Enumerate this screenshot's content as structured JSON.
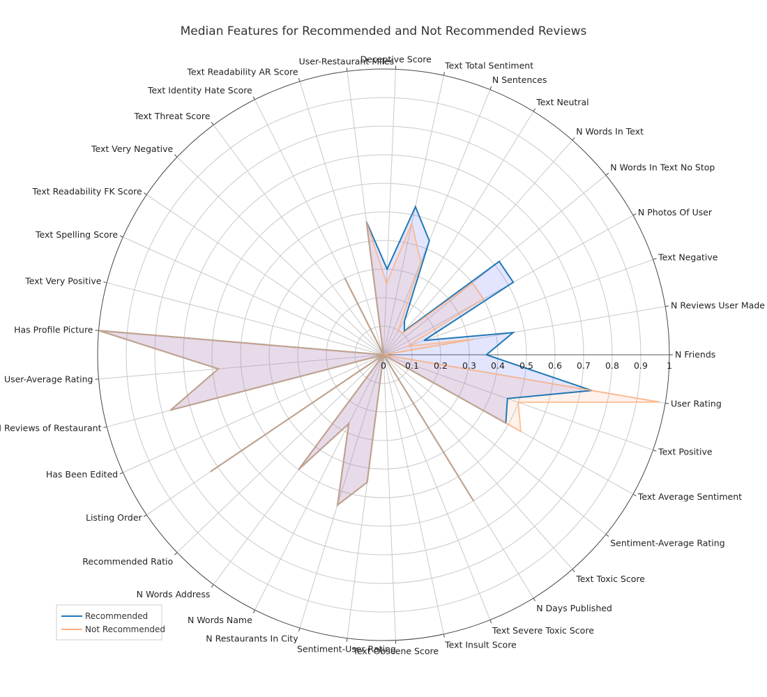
{
  "chart_data": {
    "type": "radar",
    "title": "Median Features for Recommended and Not Recommended Reviews",
    "radial_range": [
      0,
      1
    ],
    "radial_ticks": [
      "0",
      "0.1",
      "0.2",
      "0.3",
      "0.4",
      "0.5",
      "0.6",
      "0.7",
      "0.8",
      "0.9",
      "1"
    ],
    "grid": true,
    "legend_position": "bottom-left",
    "categories": [
      "N Friends",
      "User Rating",
      "Text Positive",
      "Text Average Sentiment",
      "Sentiment-Average Rating",
      "Text Toxic Score",
      "N Days Published",
      "Text Severe Toxic Score",
      "Text Insult Score",
      "Text Obscene Score",
      "Sentiment-User Rating",
      "N Restaurants In City",
      "N Words Name",
      "N Words Address",
      "Recommended Ratio",
      "Listing Order",
      "Has Been Edited",
      "N Reviews of Restaurant",
      "User-Average Rating",
      "Has Profile Picture",
      "Text Very Positive",
      "Text Spelling Score",
      "Text Readability FK Score",
      "Text Very Negative",
      "Text Threat Score",
      "Text Identity Hate Score",
      "Text Readability AR Score",
      "User-Restaurant Miles",
      "Deceptive Score",
      "Text Total Sentiment",
      "N Sentences",
      "Text Neutral",
      "N Words In Text",
      "N Words In Text No Stop",
      "N Photos Of User",
      "Text Negative",
      "N Reviews User Made"
    ],
    "series": [
      {
        "name": "Recommended",
        "color": "#1f77b4",
        "fill": "rgba(99,110,250,0.18)",
        "values": [
          0.36,
          0.74,
          0.46,
          0.49,
          0.0,
          0.0,
          0.6,
          0.0,
          0.0,
          0.0,
          0.45,
          0.55,
          0.27,
          0.5,
          0.0,
          0.73,
          0.0,
          0.77,
          0.58,
          1.0,
          0.0,
          0.0,
          0.0,
          0.0,
          0.0,
          0.3,
          0.0,
          0.47,
          0.3,
          0.53,
          0.43,
          0.14,
          0.11,
          0.52,
          0.52,
          0.15,
          0.46
        ]
      },
      {
        "name": "Not Recommended",
        "color": "#ffb07c",
        "fill": "rgba(255,160,122,0.15)",
        "values": [
          0.0,
          0.98,
          0.5,
          0.55,
          0.0,
          0.0,
          0.6,
          0.0,
          0.0,
          0.0,
          0.45,
          0.55,
          0.27,
          0.5,
          0.0,
          0.73,
          0.0,
          0.77,
          0.58,
          1.0,
          0.0,
          0.0,
          0.0,
          0.0,
          0.0,
          0.3,
          0.0,
          0.47,
          0.25,
          0.47,
          0.35,
          0.1,
          0.1,
          0.4,
          0.4,
          0.09,
          0.32
        ]
      }
    ]
  }
}
